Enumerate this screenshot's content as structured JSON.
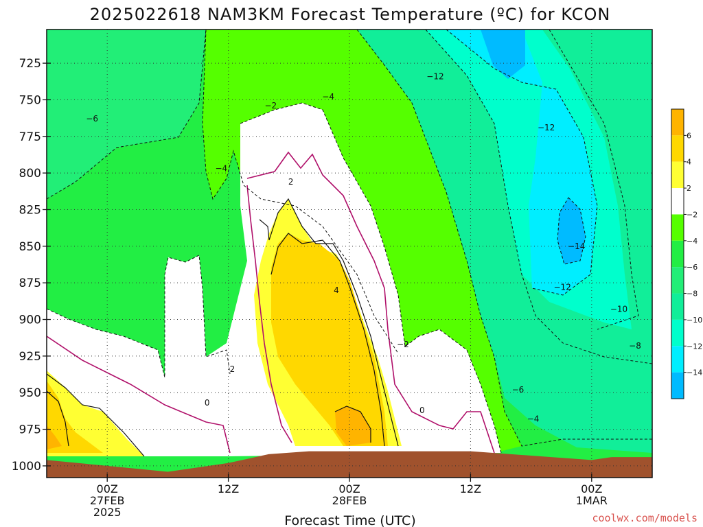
{
  "chart_data": {
    "type": "heatmap",
    "title": "2025022618 NAM3KM Forecast Temperature (ºC) for KCON",
    "xlabel": "Forecast Time (UTC)",
    "ylabel": "",
    "x_ticks": [
      {
        "hour": 6,
        "lines": [
          "00Z",
          "27FEB",
          "2025"
        ]
      },
      {
        "hour": 18,
        "lines": [
          "12Z"
        ]
      },
      {
        "hour": 30,
        "lines": [
          "00Z",
          "28FEB"
        ]
      },
      {
        "hour": 42,
        "lines": [
          "12Z"
        ]
      },
      {
        "hour": 54,
        "lines": [
          "00Z",
          "1MAR"
        ]
      }
    ],
    "xlim": [
      0,
      60
    ],
    "y_levels": [
      725,
      750,
      775,
      800,
      825,
      850,
      875,
      900,
      925,
      950,
      975,
      1000
    ],
    "ylim": [
      702,
      1008
    ],
    "y_inverted": true,
    "grid": true,
    "colorbar": {
      "placement": "right",
      "tick_labels": [
        "6",
        "4",
        "2",
        "−2",
        "−4",
        "−6",
        "−8",
        "−10",
        "−12",
        "−14"
      ],
      "bins": [
        {
          "range": [
            6,
            8
          ],
          "color": "#ffb400"
        },
        {
          "range": [
            4,
            6
          ],
          "color": "#ffd800"
        },
        {
          "range": [
            2,
            4
          ],
          "color": "#ffff33"
        },
        {
          "range": [
            -2,
            2
          ],
          "color": "#ffffff"
        },
        {
          "range": [
            -4,
            -2
          ],
          "color": "#55ff00"
        },
        {
          "range": [
            -6,
            -4
          ],
          "color": "#22ee44"
        },
        {
          "range": [
            -8,
            -6
          ],
          "color": "#22ee77"
        },
        {
          "range": [
            -10,
            -8
          ],
          "color": "#11ee99"
        },
        {
          "range": [
            -12,
            -10
          ],
          "color": "#00ffcc"
        },
        {
          "range": [
            -14,
            -12
          ],
          "color": "#00eeff"
        },
        {
          "range": [
            -16,
            -14
          ],
          "color": "#00bbff"
        }
      ]
    },
    "contour_labels": [
      {
        "text": "−6",
        "hour": 4.5,
        "p": 763
      },
      {
        "text": "−4",
        "hour": 17.3,
        "p": 797
      },
      {
        "text": "−2",
        "hour": 22.2,
        "p": 754
      },
      {
        "text": "−4",
        "hour": 27.9,
        "p": 748
      },
      {
        "text": "−12",
        "hour": 38.5,
        "p": 734
      },
      {
        "text": "−12",
        "hour": 49.5,
        "p": 769
      },
      {
        "text": "2",
        "hour": 24.2,
        "p": 806
      },
      {
        "text": "4",
        "hour": 28.7,
        "p": 880
      },
      {
        "text": "−2",
        "hour": 35.3,
        "p": 917
      },
      {
        "text": "2",
        "hour": 18.4,
        "p": 934
      },
      {
        "text": "0",
        "hour": 15.9,
        "p": 957
      },
      {
        "text": "0",
        "hour": 37.2,
        "p": 962
      },
      {
        "text": "−14",
        "hour": 52.5,
        "p": 850
      },
      {
        "text": "−12",
        "hour": 51.1,
        "p": 878
      },
      {
        "text": "−10",
        "hour": 56.7,
        "p": 893
      },
      {
        "text": "−8",
        "hour": 58.3,
        "p": 918
      },
      {
        "text": "−6",
        "hour": 46.7,
        "p": 948
      },
      {
        "text": "−4",
        "hour": 48.2,
        "p": 968
      }
    ],
    "ground_surface": [
      {
        "hour": 0,
        "p": 996
      },
      {
        "hour": 6,
        "p": 1000
      },
      {
        "hour": 12,
        "p": 1004
      },
      {
        "hour": 18,
        "p": 998
      },
      {
        "hour": 22,
        "p": 992
      },
      {
        "hour": 26,
        "p": 990
      },
      {
        "hour": 30,
        "p": 990
      },
      {
        "hour": 36,
        "p": 990
      },
      {
        "hour": 42,
        "p": 990
      },
      {
        "hour": 46,
        "p": 992
      },
      {
        "hour": 50,
        "p": 994
      },
      {
        "hour": 54,
        "p": 996
      },
      {
        "hour": 56,
        "p": 994
      },
      {
        "hour": 60,
        "p": 994
      }
    ]
  },
  "credit": "coolwx.com/models"
}
